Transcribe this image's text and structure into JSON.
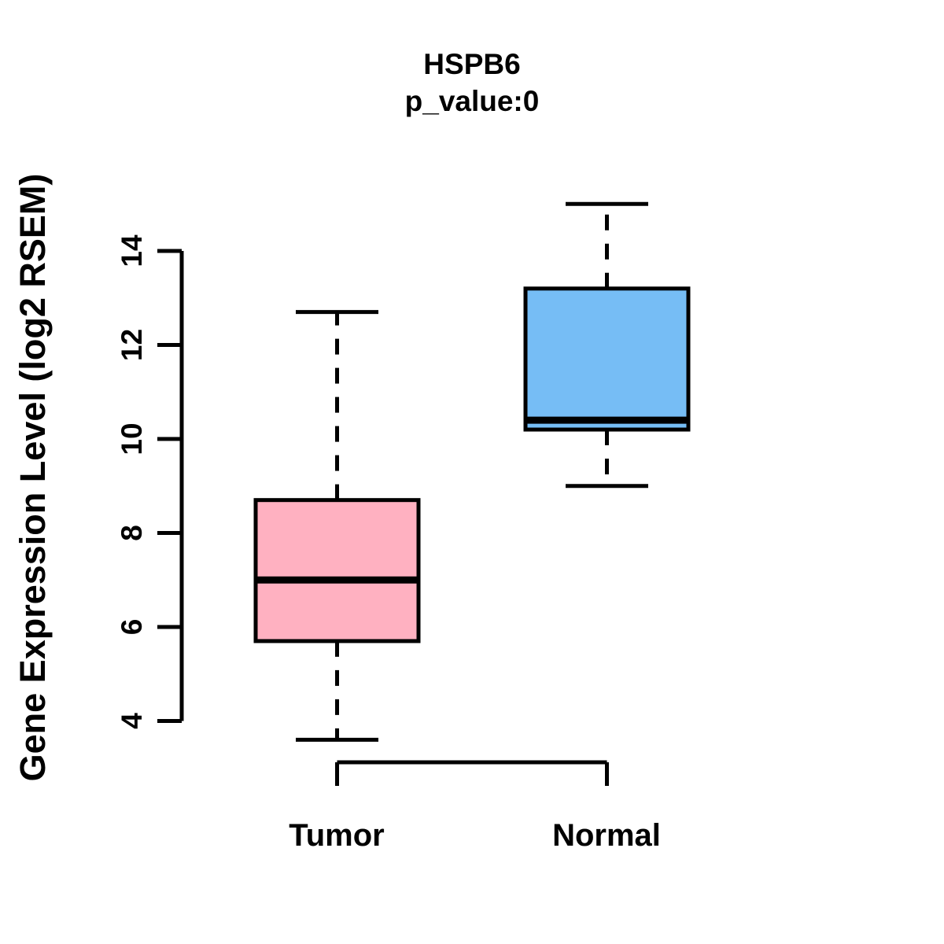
{
  "title": {
    "line1": "HSPB6",
    "line2": "p_value:0"
  },
  "y_axis": {
    "label": "Gene Expression Level (log2 RSEM)"
  },
  "chart_data": {
    "type": "boxplot",
    "title": "HSPB6",
    "subtitle": "p_value:0",
    "ylabel": "Gene Expression Level (log2 RSEM)",
    "yticks": [
      4,
      6,
      8,
      10,
      12,
      14
    ],
    "ylim": [
      3.1,
      15.5
    ],
    "grid": false,
    "whisker_style": "dashed",
    "axis_color": "#000000",
    "border_color": "#000000",
    "median_color": "#000000",
    "groups": [
      {
        "label": "Tumor",
        "color": "#FFB1C1",
        "whisker_low": 3.6,
        "q1": 5.7,
        "median": 7.0,
        "q3": 8.7,
        "whisker_high": 12.7
      },
      {
        "label": "Normal",
        "color": "#76BDF5",
        "whisker_low": 9.0,
        "q1": 10.2,
        "median": 10.4,
        "q3": 13.2,
        "whisker_high": 15.0
      }
    ]
  }
}
